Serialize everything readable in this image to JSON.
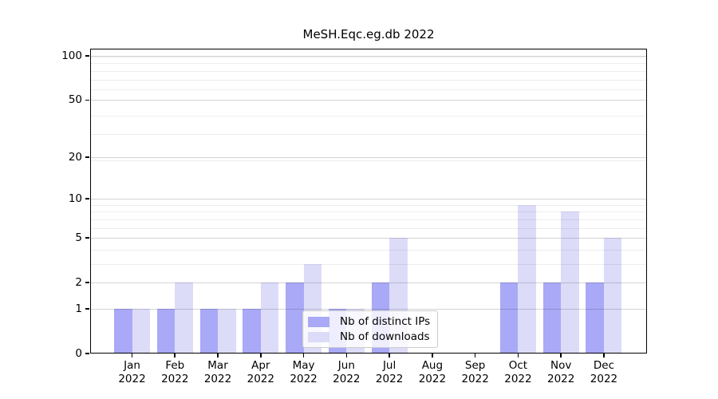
{
  "chart_data": {
    "type": "bar",
    "title": "MeSH.Eqc.eg.db 2022",
    "categories": [
      "Jan",
      "Feb",
      "Mar",
      "Apr",
      "May",
      "Jun",
      "Jul",
      "Aug",
      "Sep",
      "Oct",
      "Nov",
      "Dec"
    ],
    "year_label": "2022",
    "series": [
      {
        "name": "Nb of distinct IPs",
        "color": "#a9a9f7",
        "values": [
          1,
          1,
          1,
          1,
          2,
          1,
          2,
          0,
          0,
          2,
          2,
          2
        ]
      },
      {
        "name": "Nb of downloads",
        "color": "#dcdcf9",
        "values": [
          1,
          2,
          1,
          2,
          3,
          1,
          5,
          0,
          0,
          9,
          8,
          5
        ]
      }
    ],
    "xlabel": "",
    "ylabel": "",
    "yscale": "log1p",
    "y_major_ticks": [
      0,
      1,
      2,
      5,
      10,
      20,
      50,
      100
    ],
    "y_minor_ticks": [
      3,
      4,
      6,
      7,
      8,
      9,
      19,
      29,
      39,
      59,
      69,
      79,
      89,
      99
    ],
    "ylim": [
      0,
      112
    ],
    "grid": true,
    "legend": {
      "position": "lower center",
      "entries": [
        "Nb of distinct IPs",
        "Nb of downloads"
      ]
    }
  }
}
